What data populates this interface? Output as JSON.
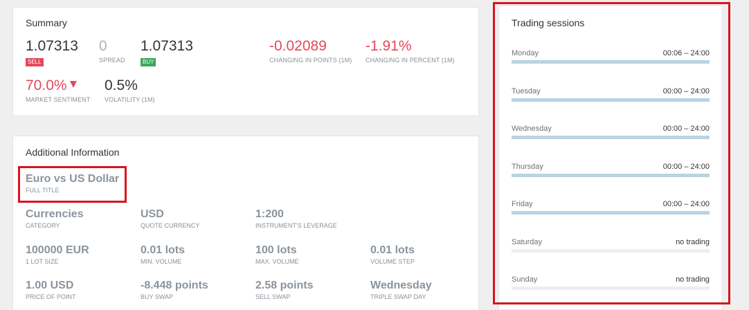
{
  "summary": {
    "title": "Summary",
    "sell": {
      "value": "1.07313",
      "badge": "SELL"
    },
    "spread": {
      "value": "0",
      "label": "SPREAD"
    },
    "buy": {
      "value": "1.07313",
      "badge": "BUY"
    },
    "change_points": {
      "value": "-0.02089",
      "label": "CHANGING IN POINTS (1M)"
    },
    "change_percent": {
      "value": "-1.91%",
      "label": "CHANGING IN PERCENT (1M)"
    },
    "sentiment": {
      "value": "70.0%",
      "label": "MARKET SENTIMENT",
      "icon": "triangle-down-icon"
    },
    "volatility": {
      "value": "0.5%",
      "label": "VOLATILITY (1M)"
    }
  },
  "additional": {
    "title": "Additional Information",
    "full_title": {
      "value": "Euro vs US Dollar",
      "label": "FULL TITLE"
    },
    "rows": [
      [
        {
          "value": "Currencies",
          "label": "CATEGORY"
        },
        {
          "value": "USD",
          "label": "QUOTE CURRENCY"
        },
        {
          "value": "1:200",
          "label": "INSTRUMENT'S LEVERAGE"
        }
      ],
      [
        {
          "value": "100000 EUR",
          "label": "1 LOT SIZE"
        },
        {
          "value": "0.01 lots",
          "label": "MIN. VOLUME"
        },
        {
          "value": "100 lots",
          "label": "MAX. VOLUME"
        },
        {
          "value": "0.01 lots",
          "label": "VOLUME STEP"
        }
      ],
      [
        {
          "value": "1.00 USD",
          "label": "PRICE OF POINT"
        },
        {
          "value": "-8.448 points",
          "label": "BUY SWAP"
        },
        {
          "value": "2.58 points",
          "label": "SELL SWAP"
        },
        {
          "value": "Wednesday",
          "label": "TRIPLE SWAP DAY"
        }
      ]
    ]
  },
  "sessions": {
    "title": "Trading sessions",
    "days": [
      {
        "day": "Monday",
        "hours": "00:06 – 24:00",
        "fill": 1.0
      },
      {
        "day": "Tuesday",
        "hours": "00:00 – 24:00",
        "fill": 1.0
      },
      {
        "day": "Wednesday",
        "hours": "00:00 – 24:00",
        "fill": 1.0
      },
      {
        "day": "Thursday",
        "hours": "00:00 – 24:00",
        "fill": 1.0
      },
      {
        "day": "Friday",
        "hours": "00:00 – 24:00",
        "fill": 1.0
      },
      {
        "day": "Saturday",
        "hours": "no trading",
        "fill": 0
      },
      {
        "day": "Sunday",
        "hours": "no trading",
        "fill": 0
      }
    ]
  },
  "colors": {
    "negative": "#e5485b",
    "positive": "#3aa85a",
    "session_bar": "#b9d3e3",
    "highlight": "#d7141c"
  }
}
